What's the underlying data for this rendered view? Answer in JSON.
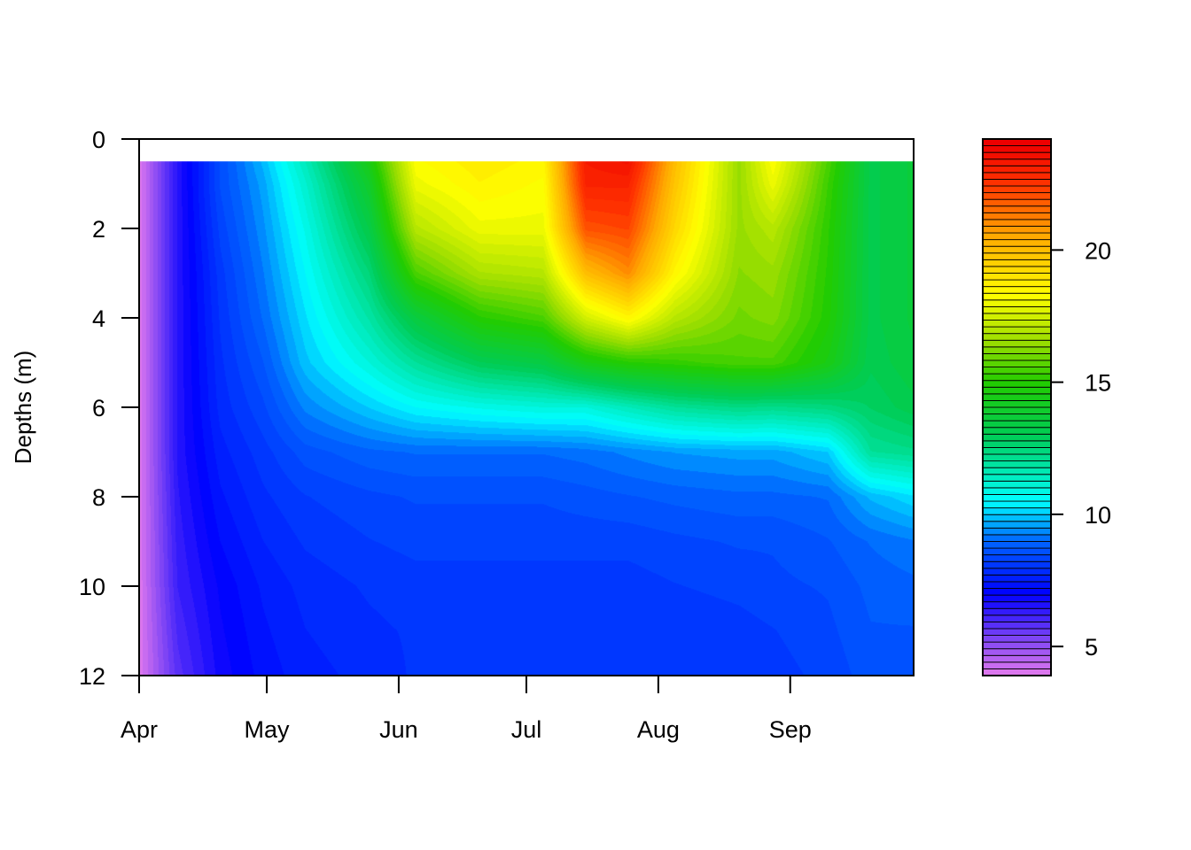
{
  "chart_data": {
    "type": "heatmap",
    "subtype": "filled-contour",
    "title": "",
    "xlabel": "",
    "ylabel": "Depths (m)",
    "x_tick_labels": [
      "Apr",
      "May",
      "Jun",
      "Jul",
      "Aug",
      "Sep"
    ],
    "x_tick_dates": [
      "04-01",
      "05-01",
      "06-01",
      "07-01",
      "08-01",
      "09-01"
    ],
    "x_range": [
      "04-01",
      "09-30"
    ],
    "y_ticks": [
      0,
      2,
      4,
      6,
      8,
      10,
      12
    ],
    "y_range": [
      0,
      12
    ],
    "y_reversed": true,
    "data_depth_top": 0.5,
    "colorbar": {
      "position": "right",
      "range": [
        3.9,
        24.2
      ],
      "ticks": [
        5,
        10,
        15,
        20
      ],
      "palette": [
        {
          "value": 4,
          "color": "#DD77EE"
        },
        {
          "value": 7,
          "color": "#0000FF"
        },
        {
          "value": 9,
          "color": "#0066FF"
        },
        {
          "value": 10.5,
          "color": "#00FFFF"
        },
        {
          "value": 13,
          "color": "#00CC55"
        },
        {
          "value": 15,
          "color": "#22CC00"
        },
        {
          "value": 16.5,
          "color": "#99DD00"
        },
        {
          "value": 18.3,
          "color": "#FFFF00"
        },
        {
          "value": 20.5,
          "color": "#FFAA00"
        },
        {
          "value": 22.5,
          "color": "#FF3300"
        },
        {
          "value": 24,
          "color": "#EE0000"
        }
      ]
    },
    "depths": [
      0.5,
      1,
      2,
      3,
      4,
      5,
      6,
      7,
      8,
      9,
      10,
      11,
      12
    ],
    "profiles": [
      {
        "date": "04-01",
        "values": [
          4.0,
          4.0,
          4.0,
          4.0,
          4.0,
          4.0,
          4.0,
          4.0,
          4.0,
          4.0,
          4.0,
          4.0,
          4.0
        ]
      },
      {
        "date": "04-10",
        "values": [
          6.5,
          6.5,
          6.5,
          6.5,
          6.5,
          6.5,
          6.5,
          6.5,
          6.4,
          6.3,
          6.2,
          6.0,
          5.8
        ]
      },
      {
        "date": "04-20",
        "values": [
          8.5,
          8.5,
          8.3,
          8.1,
          8.0,
          7.9,
          7.8,
          7.6,
          7.4,
          7.2,
          7.0,
          6.9,
          6.8
        ]
      },
      {
        "date": "04-30",
        "values": [
          9.8,
          9.6,
          9.4,
          9.2,
          9.0,
          8.7,
          8.4,
          8.1,
          7.9,
          7.7,
          7.5,
          7.4,
          7.3
        ]
      },
      {
        "date": "05-10",
        "values": [
          11.5,
          11.2,
          10.8,
          10.5,
          10.2,
          9.9,
          9.3,
          8.6,
          8.2,
          8.0,
          7.8,
          7.7,
          7.6
        ]
      },
      {
        "date": "05-25",
        "values": [
          14.5,
          14.0,
          13.3,
          12.5,
          11.8,
          11.0,
          10.0,
          8.9,
          8.4,
          8.2,
          8.0,
          7.9,
          7.8
        ]
      },
      {
        "date": "06-05",
        "values": [
          18.3,
          18.0,
          17.0,
          15.5,
          13.5,
          12.0,
          10.5,
          9.0,
          8.5,
          8.3,
          8.1,
          8.0,
          8.0
        ]
      },
      {
        "date": "06-20",
        "values": [
          18.8,
          18.6,
          18.0,
          16.8,
          15.0,
          13.0,
          10.8,
          9.0,
          8.5,
          8.3,
          8.1,
          8.0,
          8.0
        ]
      },
      {
        "date": "07-05",
        "values": [
          18.5,
          18.3,
          18.0,
          17.0,
          15.5,
          13.4,
          11.0,
          9.0,
          8.5,
          8.3,
          8.1,
          8.0,
          8.0
        ]
      },
      {
        "date": "07-15",
        "values": [
          23.2,
          23.0,
          22.0,
          20.0,
          17.5,
          14.5,
          11.0,
          9.1,
          8.6,
          8.3,
          8.1,
          8.0,
          8.0
        ]
      },
      {
        "date": "07-25",
        "values": [
          23.5,
          23.0,
          22.2,
          21.0,
          18.5,
          15.0,
          11.5,
          9.3,
          8.7,
          8.3,
          8.1,
          8.0,
          8.0
        ]
      },
      {
        "date": "08-05",
        "values": [
          20.0,
          19.8,
          19.3,
          18.5,
          17.0,
          15.2,
          12.0,
          9.5,
          8.8,
          8.4,
          8.2,
          8.0,
          8.0
        ]
      },
      {
        "date": "08-20",
        "values": [
          16.5,
          16.5,
          16.5,
          16.3,
          16.0,
          15.5,
          12.3,
          9.6,
          8.9,
          8.5,
          8.3,
          8.1,
          8.0
        ]
      },
      {
        "date": "08-28",
        "values": [
          18.3,
          18.0,
          17.0,
          16.5,
          16.2,
          15.5,
          12.2,
          9.6,
          8.9,
          8.5,
          8.4,
          8.2,
          8.1
        ]
      },
      {
        "date": "09-10",
        "values": [
          15.5,
          15.3,
          15.1,
          15.0,
          14.9,
          14.5,
          12.4,
          10.0,
          9.0,
          8.7,
          8.5,
          8.4,
          8.3
        ]
      },
      {
        "date": "09-20",
        "values": [
          13.2,
          13.2,
          13.2,
          13.2,
          13.2,
          13.1,
          12.8,
          12.0,
          9.8,
          9.0,
          8.8,
          8.7,
          8.6
        ]
      },
      {
        "date": "09-30",
        "values": [
          13.6,
          13.6,
          13.6,
          13.6,
          13.6,
          13.5,
          13.2,
          12.2,
          10.2,
          9.2,
          8.9,
          8.7,
          8.6
        ]
      }
    ]
  }
}
